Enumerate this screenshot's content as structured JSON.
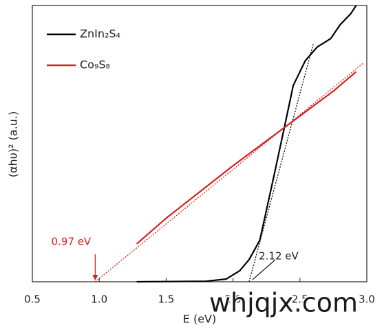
{
  "chart_data": {
    "type": "line",
    "x_label": "E (eV)",
    "y_label": "(αhυ)² (a.u.)",
    "xlim": [
      0.5,
      3.0
    ],
    "xticks": [
      0.5,
      {
        "value": 1,
        "label": "1.0"
      },
      1.5,
      {
        "value": 2,
        "label": "2.0"
      },
      2.5,
      {
        "value": 3,
        "label": "3.0"
      }
    ],
    "ylim": [
      0,
      1
    ],
    "legend": "upper-left",
    "series": [
      {
        "name": "ZnIn₂S₄",
        "color": "#000000",
        "x": [
          1.28,
          1.8,
          1.95,
          2.05,
          2.12,
          2.2,
          2.3,
          2.38,
          2.45,
          2.54,
          2.63,
          2.73,
          2.8,
          2.88,
          2.92
        ],
        "values": [
          0,
          0.002,
          0.01,
          0.04,
          0.08,
          0.15,
          0.37,
          0.55,
          0.71,
          0.8,
          0.85,
          0.88,
          0.93,
          0.97,
          1.0
        ]
      },
      {
        "name": "Co₉S₈",
        "color": "#d42020",
        "x": [
          1.28,
          1.5,
          1.75,
          2.0,
          2.25,
          2.5,
          2.75,
          2.92
        ],
        "values": [
          0.137,
          0.23,
          0.325,
          0.42,
          0.51,
          0.6,
          0.69,
          0.76
        ]
      }
    ],
    "fit_lines": [
      {
        "color": "#d42020",
        "x": [
          0.97,
          2.97
        ],
        "values": [
          0,
          0.79
        ]
      },
      {
        "color": "#000000",
        "x": [
          2.12,
          2.6
        ],
        "values": [
          0,
          0.86
        ]
      }
    ],
    "annotations": [
      {
        "text": "0.97 eV",
        "x": 0.97,
        "y": 0,
        "color": "#d42020"
      },
      {
        "text": "2.12 eV",
        "x": 2.12,
        "y": 0,
        "color": "#222222"
      }
    ],
    "watermark": "whjqjx.com"
  }
}
